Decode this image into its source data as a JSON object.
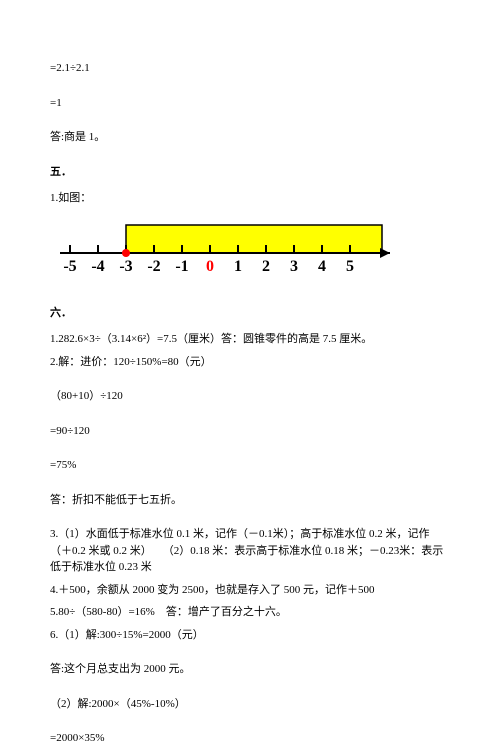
{
  "top": {
    "eq1": "=2.1÷2.1",
    "eq2": "=1",
    "ans": "答:商是 1。"
  },
  "sec5": {
    "title": "五．",
    "item1": "1.如图："
  },
  "numberline": {
    "labels": [
      "-5",
      "-4",
      "-3",
      "-2",
      "-1",
      "0",
      "1",
      "2",
      "3",
      "4",
      "5"
    ],
    "zeroIndex": 5,
    "barColor": "#ffff00",
    "lineColor": "#000000",
    "dotColor": "#ff0000",
    "arrowColor": "#000000"
  },
  "sec6": {
    "title": "六．",
    "l1": "1.282.6×3÷（3.14×6²）=7.5（厘米）答：圆锥零件的高是 7.5 厘米。",
    "l2": "2.解：进价：120÷150%=80（元）",
    "l3": "（80+10）÷120",
    "l4": "=90÷120",
    "l5": "=75%",
    "l6": "答：折扣不能低于七五折。",
    "l7": "3.（1）水面低于标准水位 0.1 米，记作（－0.1米）；高于标准水位 0.2 米，记作（＋0.2 米或 0.2 米）　　（2）0.18 米：表示高于标准水位 0.18 米；－0.23米：表示低于标准水位 0.23 米",
    "l8": "4.＋500，余额从 2000 变为 2500，也就是存入了 500 元，记作＋500",
    "l9": "5.80÷（580-80）=16%　答：增产了百分之十六。",
    "l10": "6.（1）解:300÷15%=2000（元）",
    "l11": "答:这个月总支出为 2000 元。",
    "l12": "（2）解:2000×（45%-10%）",
    "l13": "=2000×35%"
  }
}
